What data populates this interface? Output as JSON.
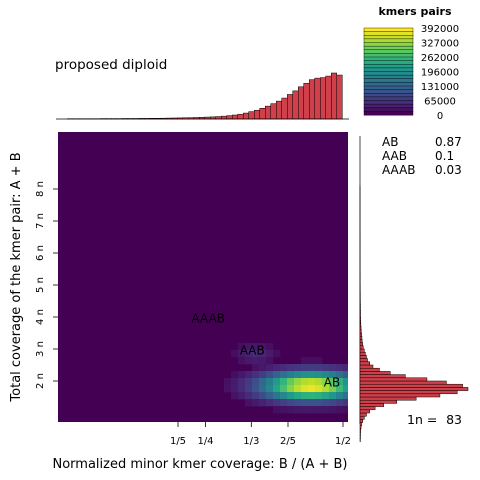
{
  "chart_data": {
    "type": "heatmap",
    "title": "proposed diploid",
    "xlabel": "Normalized minor kmer coverage: B / (A + B)",
    "ylabel": "Total coverage of the kmer pair: A + B",
    "xlim": [
      0,
      0.5
    ],
    "x_ticks": [
      {
        "value": 0.2,
        "label": "1/5"
      },
      {
        "value": 0.25,
        "label": "1/4"
      },
      {
        "value": 0.3333,
        "label": "1/3"
      },
      {
        "value": 0.4,
        "label": "2/5"
      },
      {
        "value": 0.5,
        "label": "1/2"
      }
    ],
    "ylim_multiple_of_1n": [
      0,
      9.65
    ],
    "y_ticks": [
      {
        "value": 2,
        "label": "2 n"
      },
      {
        "value": 3,
        "label": "3 n"
      },
      {
        "value": 4,
        "label": "4 n"
      },
      {
        "value": 5,
        "label": "5 n"
      },
      {
        "value": 6,
        "label": "6 n"
      },
      {
        "value": 7,
        "label": "7 n"
      },
      {
        "value": 8,
        "label": "8 n"
      }
    ],
    "background_color": "#440154",
    "peak_labels": [
      {
        "label": "AB",
        "x": 0.48,
        "y_n": 1.95
      },
      {
        "label": "AAB",
        "x": 0.335,
        "y_n": 2.95
      },
      {
        "label": "AAAB",
        "x": 0.255,
        "y_n": 3.95
      }
    ],
    "hotspots": [
      {
        "x": 0.435,
        "y_n": 1.95,
        "value": 392000
      },
      {
        "x": 0.335,
        "y_n": 2.95,
        "value": 45000
      }
    ],
    "legend": {
      "title": "kmers pairs",
      "ticks": [
        392000,
        327000,
        262000,
        196000,
        131000,
        65000,
        0
      ],
      "tick_labels": [
        "392000",
        "327000",
        "262000",
        "196000",
        "131000",
        "65000",
        "0"
      ],
      "colormap": "viridis"
    },
    "ploidy_proportions": [
      {
        "label": "AB",
        "value": "0.87"
      },
      {
        "label": "AAB",
        "value": "0.1"
      },
      {
        "label": "AAAB",
        "value": "0.03"
      }
    ],
    "coverage_1n": {
      "prefix": "1n =",
      "value": "83"
    },
    "top_hist": {
      "bins_x": [
        0.0,
        0.01,
        0.02,
        0.03,
        0.04,
        0.05,
        0.06,
        0.07,
        0.08,
        0.09,
        0.1,
        0.11,
        0.12,
        0.13,
        0.14,
        0.15,
        0.16,
        0.17,
        0.18,
        0.19,
        0.2,
        0.21,
        0.22,
        0.23,
        0.24,
        0.25,
        0.26,
        0.27,
        0.28,
        0.29,
        0.3,
        0.31,
        0.32,
        0.33,
        0.34,
        0.35,
        0.36,
        0.37,
        0.38,
        0.39,
        0.4,
        0.41,
        0.42,
        0.43,
        0.44,
        0.45,
        0.46,
        0.47,
        0.48,
        0.49
      ],
      "values": [
        0.3,
        0.3,
        0.3,
        0.3,
        0.3,
        0.3,
        0.4,
        0.4,
        0.4,
        0.4,
        0.5,
        0.5,
        0.5,
        0.6,
        0.6,
        0.7,
        0.7,
        0.8,
        0.9,
        1.0,
        1.1,
        1.2,
        1.3,
        1.5,
        1.7,
        1.9,
        2.1,
        2.4,
        2.8,
        3.3,
        3.9,
        4.7,
        5.8,
        7.2,
        8.6,
        10.5,
        12.6,
        15.0,
        17.5,
        20.5,
        24.0,
        27.5,
        31.5,
        35.0,
        38.5,
        40.0,
        40.5,
        42.0,
        45.0,
        43.0
      ],
      "color": "#d0404b"
    },
    "right_hist": {
      "bins_y_n": [
        0.15,
        0.25,
        0.35,
        0.45,
        0.55,
        0.65,
        0.75,
        0.85,
        0.95,
        1.05,
        1.15,
        1.25,
        1.35,
        1.45,
        1.55,
        1.65,
        1.75,
        1.85,
        1.95,
        2.05,
        2.15,
        2.25,
        2.35,
        2.45,
        2.55,
        2.65,
        2.75,
        2.85,
        2.95,
        3.05,
        3.15,
        3.25,
        3.35,
        3.45,
        3.55,
        3.65,
        3.75,
        3.85,
        3.95,
        4.05,
        4.15,
        4.25,
        4.35,
        4.45,
        4.55,
        4.65,
        4.75,
        4.85,
        4.95,
        5.05,
        5.15,
        5.25,
        5.35,
        5.45,
        5.55,
        5.65,
        5.75,
        5.85,
        5.95,
        6.05,
        6.15,
        6.25,
        6.35,
        6.45,
        6.55,
        6.65,
        6.75,
        6.85,
        6.95,
        7.05,
        7.15,
        7.25,
        7.35,
        7.45,
        7.55,
        7.65,
        7.75,
        7.85,
        7.95,
        8.05
      ],
      "values": [
        0.3,
        0.4,
        0.5,
        0.6,
        1.0,
        1.5,
        2.5,
        4,
        6,
        9,
        14,
        22,
        34,
        52,
        74,
        90,
        100,
        95,
        80,
        62,
        42,
        28,
        18,
        12,
        9,
        7,
        6,
        5,
        4,
        3,
        2.5,
        2,
        1.8,
        1.5,
        1.2,
        1,
        0.8,
        0.7,
        0.6,
        0.5,
        0.5,
        0.4,
        0.4,
        0.35,
        0.3,
        0.3,
        0.3,
        0.25,
        0.25,
        0.2,
        0.2,
        0.2,
        0.2,
        0.15,
        0.15,
        0.15,
        0.15,
        0.1,
        0.1,
        0.1,
        0.1,
        0.1,
        0.1,
        0.1,
        0.1,
        0.05,
        0.05,
        0.05,
        0.05,
        0.05,
        0.05,
        0.05,
        0.05,
        0.05,
        0.05,
        0.05,
        0.05,
        0.05,
        0.05,
        0.05
      ],
      "color": "#d0404b"
    }
  }
}
